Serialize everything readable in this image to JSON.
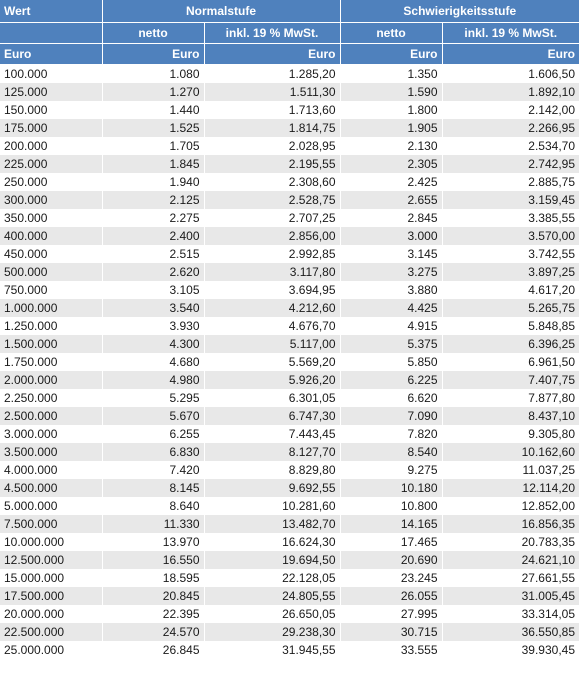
{
  "header": {
    "wert": "Wert",
    "normal": "Normalstufe",
    "schwierig": "Schwierigkeitsstufe",
    "netto": "netto",
    "inkl": "inkl. 19 % MwSt.",
    "euro": "Euro"
  },
  "rows": [
    [
      "100.000",
      "1.080",
      "1.285,20",
      "1.350",
      "1.606,50"
    ],
    [
      "125.000",
      "1.270",
      "1.511,30",
      "1.590",
      "1.892,10"
    ],
    [
      "150.000",
      "1.440",
      "1.713,60",
      "1.800",
      "2.142,00"
    ],
    [
      "175.000",
      "1.525",
      "1.814,75",
      "1.905",
      "2.266,95"
    ],
    [
      "200.000",
      "1.705",
      "2.028,95",
      "2.130",
      "2.534,70"
    ],
    [
      "225.000",
      "1.845",
      "2.195,55",
      "2.305",
      "2.742,95"
    ],
    [
      "250.000",
      "1.940",
      "2.308,60",
      "2.425",
      "2.885,75"
    ],
    [
      "300.000",
      "2.125",
      "2.528,75",
      "2.655",
      "3.159,45"
    ],
    [
      "350.000",
      "2.275",
      "2.707,25",
      "2.845",
      "3.385,55"
    ],
    [
      "400.000",
      "2.400",
      "2.856,00",
      "3.000",
      "3.570,00"
    ],
    [
      "450.000",
      "2.515",
      "2.992,85",
      "3.145",
      "3.742,55"
    ],
    [
      "500.000",
      "2.620",
      "3.117,80",
      "3.275",
      "3.897,25"
    ],
    [
      "750.000",
      "3.105",
      "3.694,95",
      "3.880",
      "4.617,20"
    ],
    [
      "1.000.000",
      "3.540",
      "4.212,60",
      "4.425",
      "5.265,75"
    ],
    [
      "1.250.000",
      "3.930",
      "4.676,70",
      "4.915",
      "5.848,85"
    ],
    [
      "1.500.000",
      "4.300",
      "5.117,00",
      "5.375",
      "6.396,25"
    ],
    [
      "1.750.000",
      "4.680",
      "5.569,20",
      "5.850",
      "6.961,50"
    ],
    [
      "2.000.000",
      "4.980",
      "5.926,20",
      "6.225",
      "7.407,75"
    ],
    [
      "2.250.000",
      "5.295",
      "6.301,05",
      "6.620",
      "7.877,80"
    ],
    [
      "2.500.000",
      "5.670",
      "6.747,30",
      "7.090",
      "8.437,10"
    ],
    [
      "3.000.000",
      "6.255",
      "7.443,45",
      "7.820",
      "9.305,80"
    ],
    [
      "3.500.000",
      "6.830",
      "8.127,70",
      "8.540",
      "10.162,60"
    ],
    [
      "4.000.000",
      "7.420",
      "8.829,80",
      "9.275",
      "11.037,25"
    ],
    [
      "4.500.000",
      "8.145",
      "9.692,55",
      "10.180",
      "12.114,20"
    ],
    [
      "5.000.000",
      "8.640",
      "10.281,60",
      "10.800",
      "12.852,00"
    ],
    [
      "7.500.000",
      "11.330",
      "13.482,70",
      "14.165",
      "16.856,35"
    ],
    [
      "10.000.000",
      "13.970",
      "16.624,30",
      "17.465",
      "20.783,35"
    ],
    [
      "12.500.000",
      "16.550",
      "19.694,50",
      "20.690",
      "24.621,10"
    ],
    [
      "15.000.000",
      "18.595",
      "22.128,05",
      "23.245",
      "27.661,55"
    ],
    [
      "17.500.000",
      "20.845",
      "24.805,55",
      "26.055",
      "31.005,45"
    ],
    [
      "20.000.000",
      "22.395",
      "26.650,05",
      "27.995",
      "33.314,05"
    ],
    [
      "22.500.000",
      "24.570",
      "29.238,30",
      "30.715",
      "36.550,85"
    ],
    [
      "25.000.000",
      "26.845",
      "31.945,55",
      "33.555",
      "39.930,45"
    ]
  ]
}
